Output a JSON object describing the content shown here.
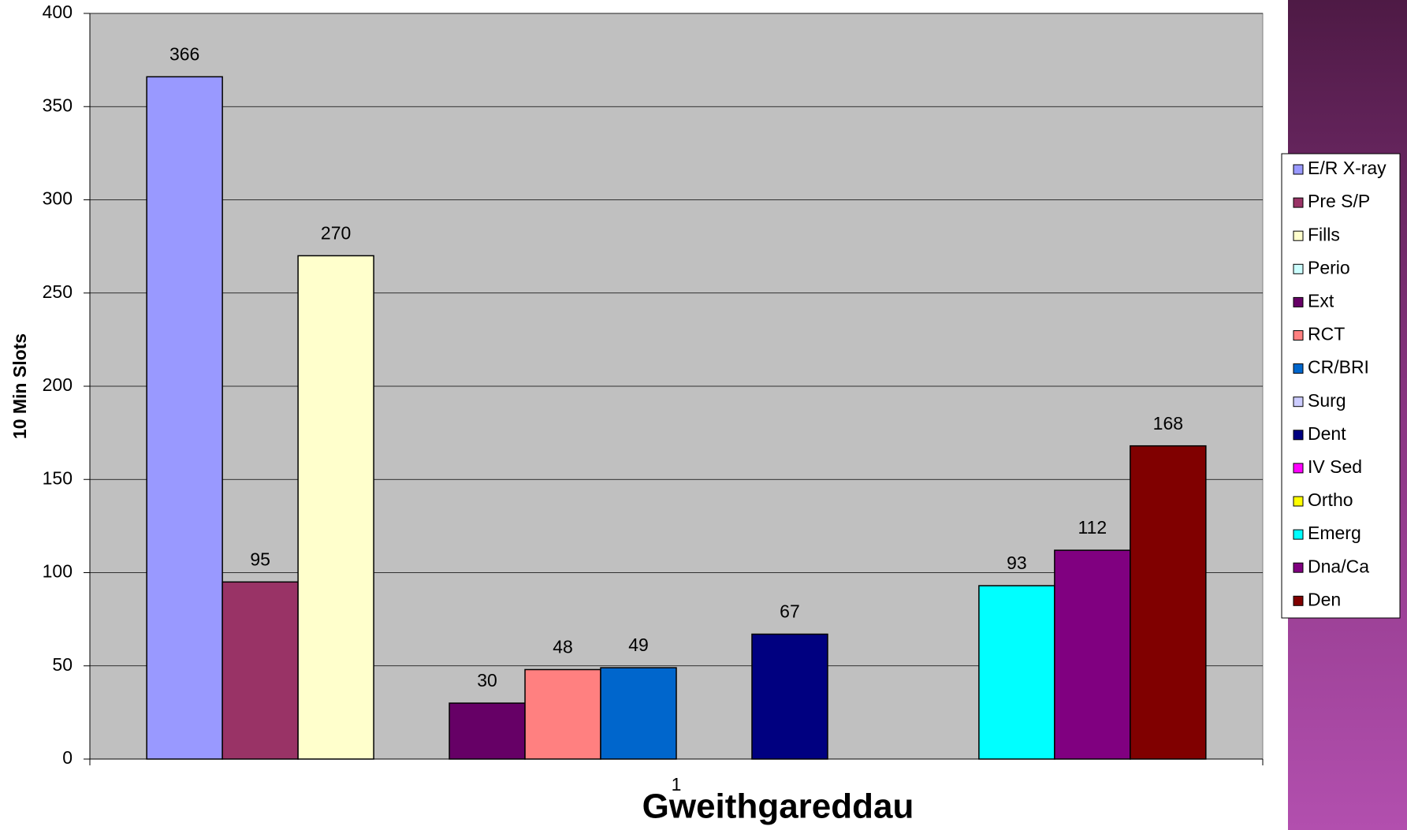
{
  "chart_data": {
    "type": "bar",
    "x_label": "Gweithgareddau",
    "y_label": "10 Min Slots",
    "categories": [
      "1"
    ],
    "series": [
      {
        "name": "E/R X-ray",
        "color": "#9999ff",
        "values": [
          366
        ]
      },
      {
        "name": "Pre S/P",
        "color": "#993366",
        "values": [
          95
        ]
      },
      {
        "name": "Fills",
        "color": "#ffffcc",
        "values": [
          270
        ]
      },
      {
        "name": "Perio",
        "color": "#ccffff",
        "values": [
          null
        ]
      },
      {
        "name": "Ext",
        "color": "#660066",
        "values": [
          30
        ]
      },
      {
        "name": "RCT",
        "color": "#ff8080",
        "values": [
          48
        ]
      },
      {
        "name": "CR/BRI",
        "color": "#0066cc",
        "values": [
          49
        ]
      },
      {
        "name": "Surg",
        "color": "#ccccff",
        "values": [
          null
        ]
      },
      {
        "name": "Dent",
        "color": "#000080",
        "values": [
          67
        ]
      },
      {
        "name": "IV Sed",
        "color": "#ff00ff",
        "values": [
          null
        ]
      },
      {
        "name": "Ortho",
        "color": "#ffff00",
        "values": [
          null
        ]
      },
      {
        "name": "Emerg",
        "color": "#00ffff",
        "values": [
          93
        ]
      },
      {
        "name": "Dna/Ca",
        "color": "#800080",
        "values": [
          112
        ]
      },
      {
        "name": "Den",
        "color": "#800000",
        "values": [
          168
        ]
      }
    ],
    "ylim": [
      0,
      400
    ],
    "yticks": [
      0,
      50,
      100,
      150,
      200,
      250,
      300,
      350,
      400
    ],
    "grid": true,
    "legend": "right"
  }
}
